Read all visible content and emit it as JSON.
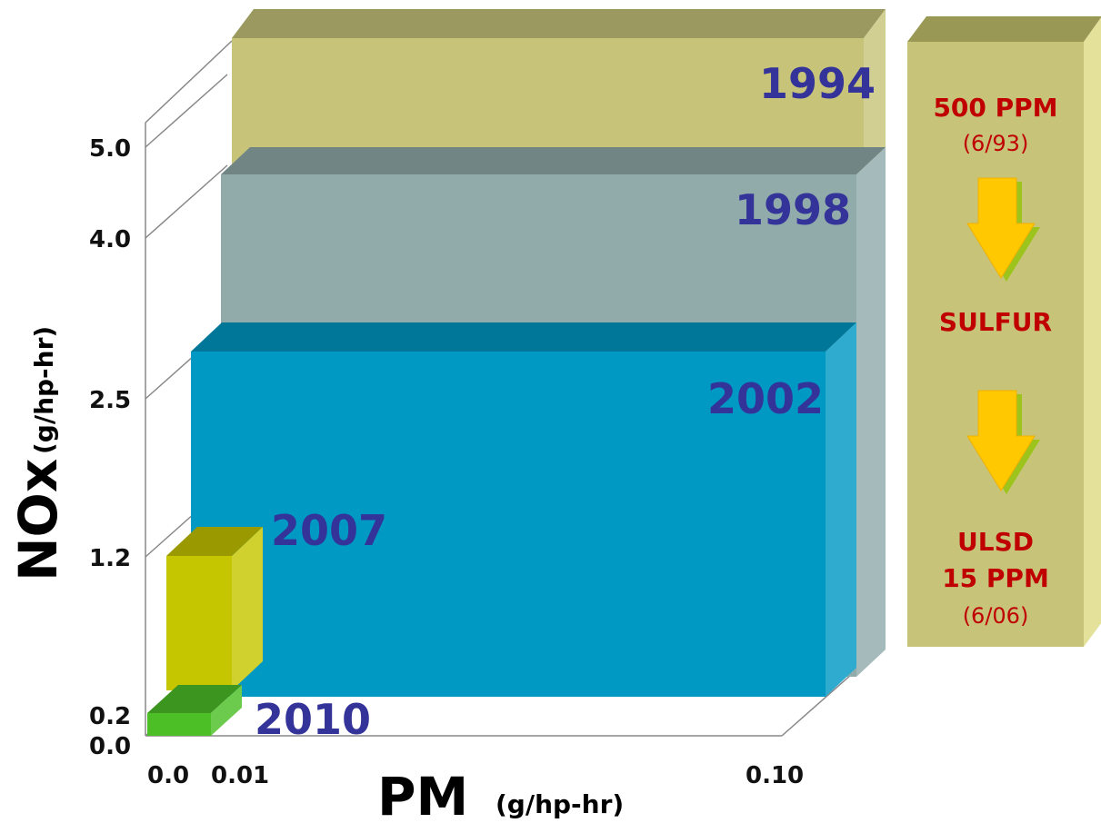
{
  "chart_data": {
    "type": "bar",
    "title": "",
    "xlabel": "PM",
    "xunit": "(g/hp-hr)",
    "ylabel": "NOx",
    "yunit": "(g/hp-hr)",
    "x_ticks": [
      "0.0",
      "0.01",
      "0.10"
    ],
    "y_ticks": [
      "0.0",
      "0.2",
      "1.2",
      "2.5",
      "4.0",
      "5.0"
    ],
    "series": [
      {
        "name": "1994",
        "pm": 0.1,
        "nox": 5.0,
        "color": "#c7c47a"
      },
      {
        "name": "1998",
        "pm": 0.1,
        "nox": 4.0,
        "color": "#91abab"
      },
      {
        "name": "2002",
        "pm": 0.1,
        "nox": 2.5,
        "color": "#0099c4"
      },
      {
        "name": "2007",
        "pm": 0.01,
        "nox": 1.2,
        "color": "#c6c600"
      },
      {
        "name": "2010",
        "pm": 0.01,
        "nox": 0.2,
        "color": "#4cbf26"
      }
    ],
    "sulfur_panel": {
      "label": "SULFUR",
      "top_value": "500 PPM",
      "top_date": "(6/93)",
      "bottom_line1": "ULSD",
      "bottom_line2": "15 PPM",
      "bottom_date": "(6/06)",
      "color": "#c7c47a"
    }
  }
}
